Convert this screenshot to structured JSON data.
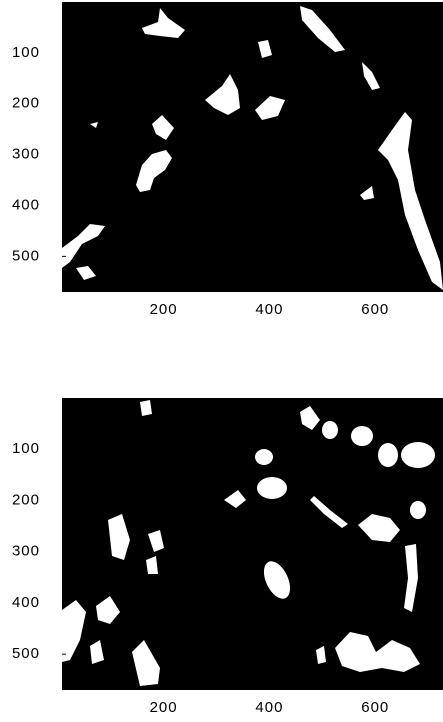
{
  "chart_data": [
    {
      "type": "image",
      "xlim": [
        8,
        728
      ],
      "ylim": [
        0,
        570
      ],
      "xticks": [
        200,
        400,
        600
      ],
      "yticks": [
        100,
        200,
        300,
        400,
        500
      ]
    },
    {
      "type": "image",
      "xlim": [
        8,
        728
      ],
      "ylim": [
        0,
        570
      ],
      "xticks": [
        200,
        400,
        600
      ],
      "yticks": [
        100,
        200,
        300,
        400,
        500
      ]
    }
  ]
}
